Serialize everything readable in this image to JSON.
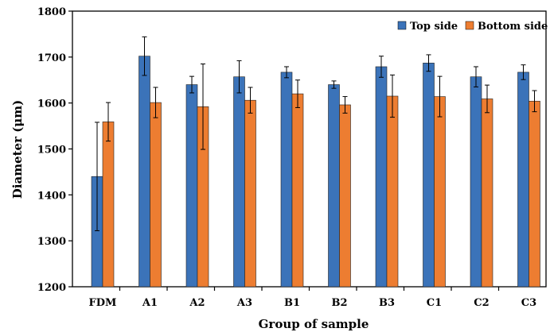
{
  "chart_data": {
    "type": "bar",
    "xlabel": "Group of sample",
    "ylabel": "Diameter (μm)",
    "ylim": [
      1200,
      1800
    ],
    "yticks": [
      1200,
      1300,
      1400,
      1500,
      1600,
      1700,
      1800
    ],
    "categories": [
      "FDM",
      "A1",
      "A2",
      "A3",
      "B1",
      "B2",
      "B3",
      "C1",
      "C2",
      "C3"
    ],
    "legend_position": "top-right",
    "grid": false,
    "series": [
      {
        "name": "Top side",
        "color": "#3b73b9",
        "values": [
          1440,
          1702,
          1640,
          1657,
          1667,
          1640,
          1679,
          1687,
          1657,
          1667
        ],
        "errors": [
          118,
          42,
          18,
          35,
          12,
          8,
          23,
          18,
          22,
          16
        ]
      },
      {
        "name": "Bottom side",
        "color": "#ed7d31",
        "values": [
          1559,
          1601,
          1592,
          1606,
          1620,
          1596,
          1615,
          1614,
          1609,
          1604
        ],
        "errors": [
          42,
          33,
          93,
          28,
          30,
          18,
          46,
          44,
          30,
          23
        ]
      }
    ]
  }
}
